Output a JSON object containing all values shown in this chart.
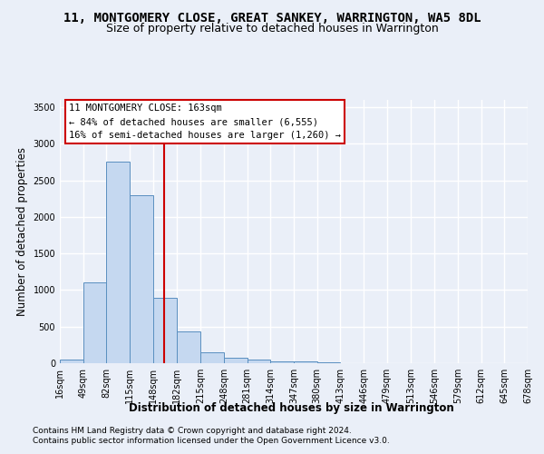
{
  "title": "11, MONTGOMERY CLOSE, GREAT SANKEY, WARRINGTON, WA5 8DL",
  "subtitle": "Size of property relative to detached houses in Warrington",
  "xlabel": "Distribution of detached houses by size in Warrington",
  "ylabel": "Number of detached properties",
  "footer_line1": "Contains HM Land Registry data © Crown copyright and database right 2024.",
  "footer_line2": "Contains public sector information licensed under the Open Government Licence v3.0.",
  "annotation_line1": "11 MONTGOMERY CLOSE: 163sqm",
  "annotation_line2": "← 84% of detached houses are smaller (6,555)",
  "annotation_line3": "16% of semi-detached houses are larger (1,260) →",
  "bar_color": "#c5d8f0",
  "bar_edge_color": "#5a8fc0",
  "vline_color": "#cc0000",
  "vline_x": 163,
  "bin_edges": [
    16,
    49,
    82,
    115,
    148,
    182,
    215,
    248,
    281,
    314,
    347,
    380,
    413,
    446,
    479,
    513,
    546,
    579,
    612,
    645,
    678
  ],
  "bar_heights": [
    50,
    1100,
    2750,
    2300,
    900,
    430,
    150,
    80,
    50,
    30,
    20,
    10,
    5,
    3,
    2,
    1,
    1,
    1,
    1,
    1
  ],
  "xlim": [
    16,
    678
  ],
  "ylim": [
    0,
    3600
  ],
  "yticks": [
    0,
    500,
    1000,
    1500,
    2000,
    2500,
    3000,
    3500
  ],
  "bg_color": "#eaeff8",
  "axes_bg_color": "#eaeff8",
  "grid_color": "#ffffff",
  "title_fontsize": 10,
  "subtitle_fontsize": 9,
  "label_fontsize": 8.5,
  "tick_fontsize": 7,
  "footer_fontsize": 6.5,
  "ann_fontsize": 7.5
}
